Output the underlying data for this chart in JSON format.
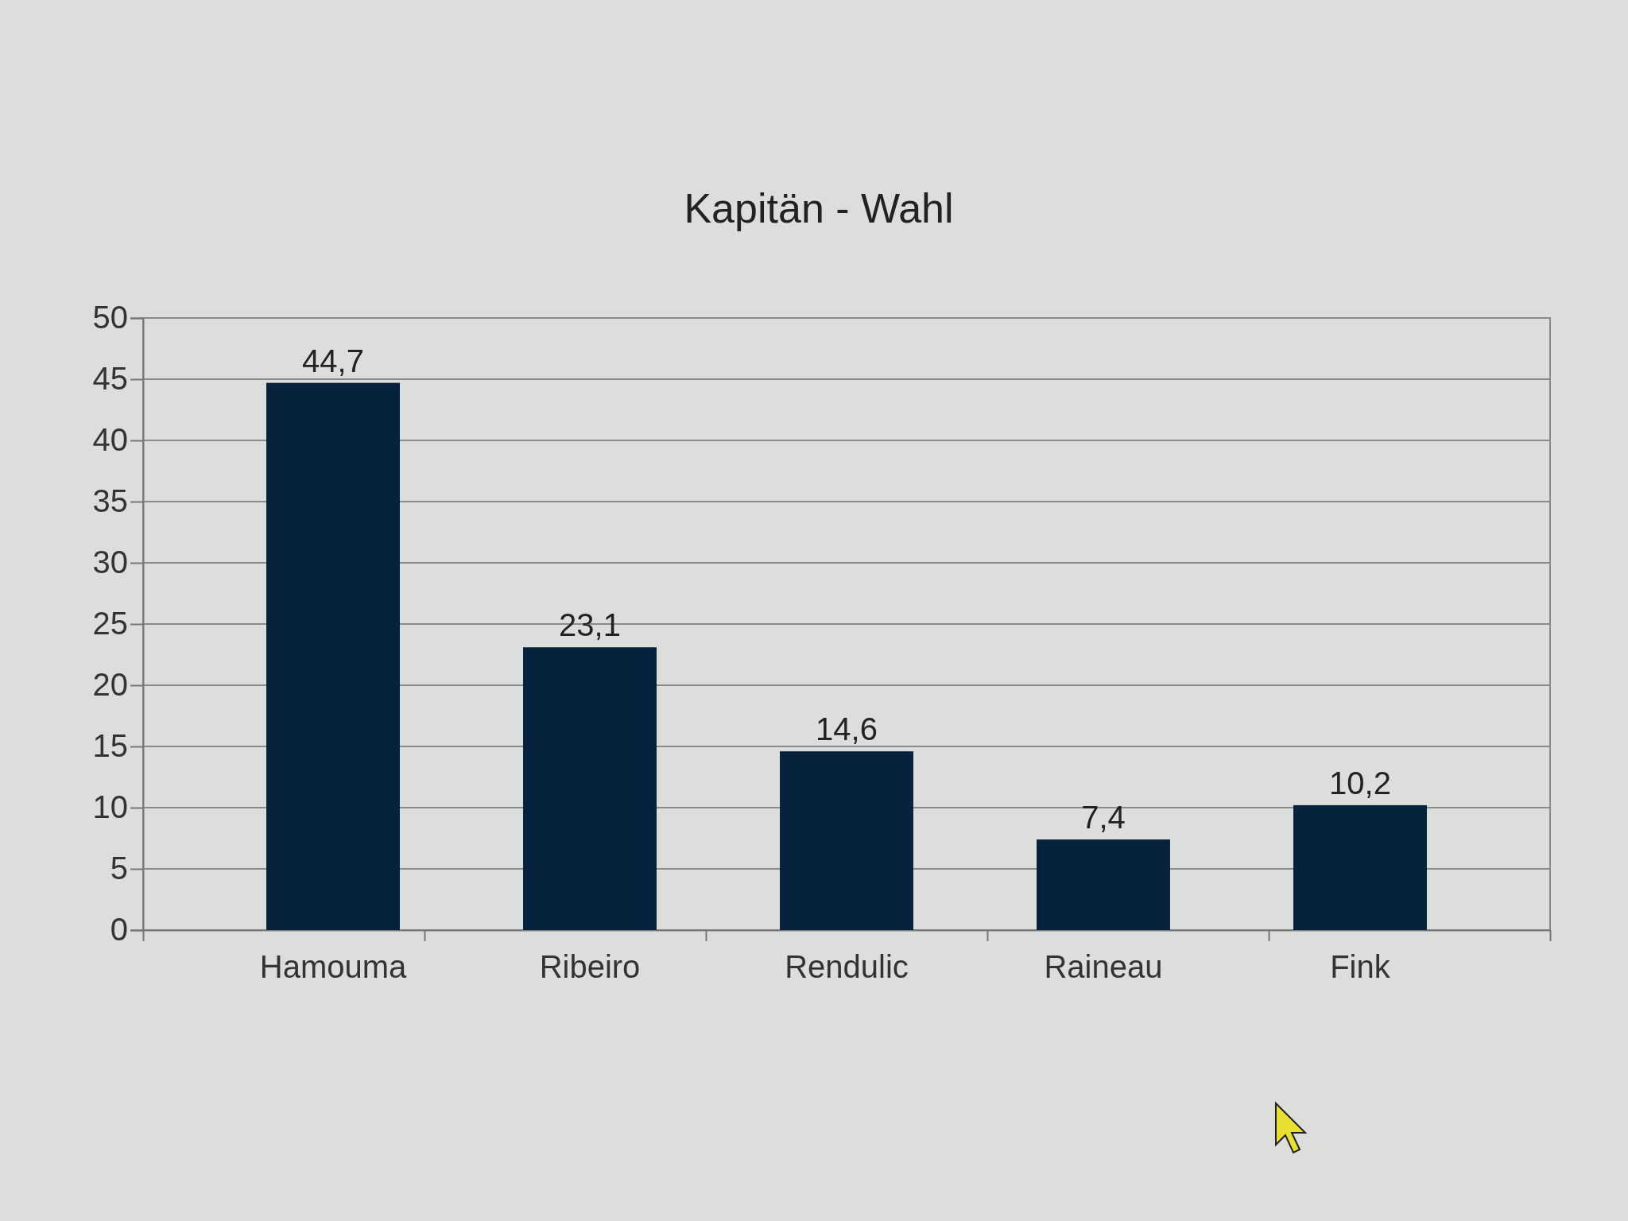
{
  "chart_data": {
    "type": "bar",
    "title": "Kapitän - Wahl",
    "categories": [
      "Hamouma",
      "Ribeiro",
      "Rendulic",
      "Raineau",
      "Fink"
    ],
    "values": [
      44.7,
      23.1,
      14.6,
      7.4,
      10.2
    ],
    "value_labels": [
      "44,7",
      "23,1",
      "14,6",
      "7,4",
      "10,2"
    ],
    "color": "#06223d",
    "ylim": [
      0,
      50
    ],
    "yticks": [
      0,
      5,
      10,
      15,
      20,
      25,
      30,
      35,
      40,
      45,
      50
    ],
    "grid": "y"
  }
}
